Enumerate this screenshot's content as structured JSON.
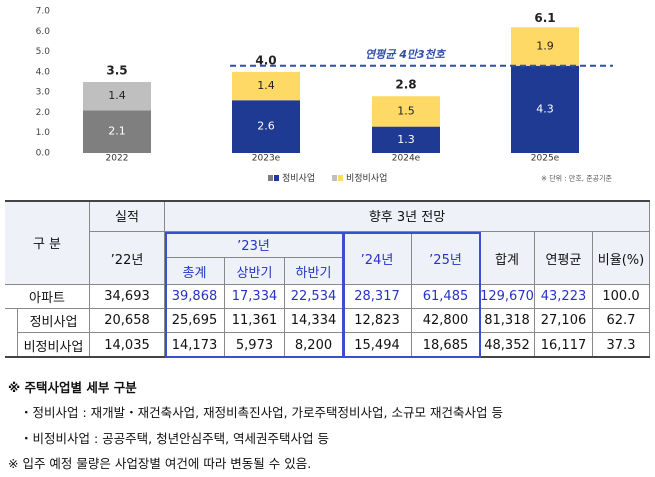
{
  "chart_data": {
    "type": "stacked-bar",
    "categories": [
      "2022",
      "2023e",
      "2024e",
      "2025e"
    ],
    "series": [
      {
        "name": "정비사업",
        "colors": [
          "#7f7f7f",
          "#1f3a93",
          "#1f3a93",
          "#1f3a93"
        ],
        "values": [
          2.1,
          2.6,
          1.3,
          4.3
        ]
      },
      {
        "name": "비정비사업",
        "colors": [
          "#bfbfbf",
          "#ffd966",
          "#ffd966",
          "#ffd966"
        ],
        "values": [
          1.4,
          1.4,
          1.5,
          1.9
        ]
      }
    ],
    "totals": {
      "values": [
        3.5,
        4.0,
        2.8,
        6.1
      ],
      "value_labels": [
        "3.5",
        "4.0",
        "2.8",
        "6.1"
      ]
    },
    "reference": {
      "value": 4.3,
      "label": "연평균 4만3천호",
      "color": "#2f4fa8"
    },
    "ylim": [
      0,
      7
    ],
    "yticks": [
      {
        "value": 0,
        "label": "0.0"
      },
      {
        "value": 1,
        "label": "1.0"
      },
      {
        "value": 2,
        "label": "2.0"
      },
      {
        "value": 3,
        "label": "3.0"
      },
      {
        "value": 4,
        "label": "4.0"
      },
      {
        "value": 5,
        "label": "5.0"
      },
      {
        "value": 6,
        "label": "6.0"
      },
      {
        "value": 7,
        "label": "7.0"
      }
    ],
    "grid": false,
    "unit_note": "※ 단위 : 만호, 준공기준"
  },
  "table": {
    "header": {
      "group": "구   분",
      "actual": "실적",
      "forecast": "향후 3년 전망",
      "y22": "’22년",
      "y23": "’23년",
      "total": "총계",
      "h1": "상반기",
      "h2": "하반기",
      "y24": "’24년",
      "y25": "’25년",
      "sum": "합계",
      "avg": "연평균",
      "ratio": "비율(%)"
    },
    "rows": [
      [
        "아파트",
        "34,693",
        "39,868",
        "17,334",
        "22,534",
        "28,317",
        "61,485",
        "129,670",
        "43,223",
        "100.0"
      ],
      [
        "정비사업",
        "20,658",
        "25,695",
        "11,361",
        "14,334",
        "12,823",
        "42,800",
        "81,318",
        "27,106",
        "62.7"
      ],
      [
        "비정비사업",
        "14,035",
        "14,173",
        "5,973",
        "8,200",
        "15,494",
        "18,685",
        "48,352",
        "16,117",
        "37.3"
      ]
    ]
  },
  "notes": {
    "title": "※ 주택사업별 세부 구분",
    "items": [
      "・정비사업 : 재개발・재건축사업, 재정비촉진사업, 가로주택정비사업, 소규모 재건축사업 등",
      "・비정비사업 : 공공주택, 청년안심주택, 역세권주택사업 등"
    ],
    "footnote": "※ 입주 예정 물량은 사업장별 여건에 따라 변동될 수 있음."
  }
}
